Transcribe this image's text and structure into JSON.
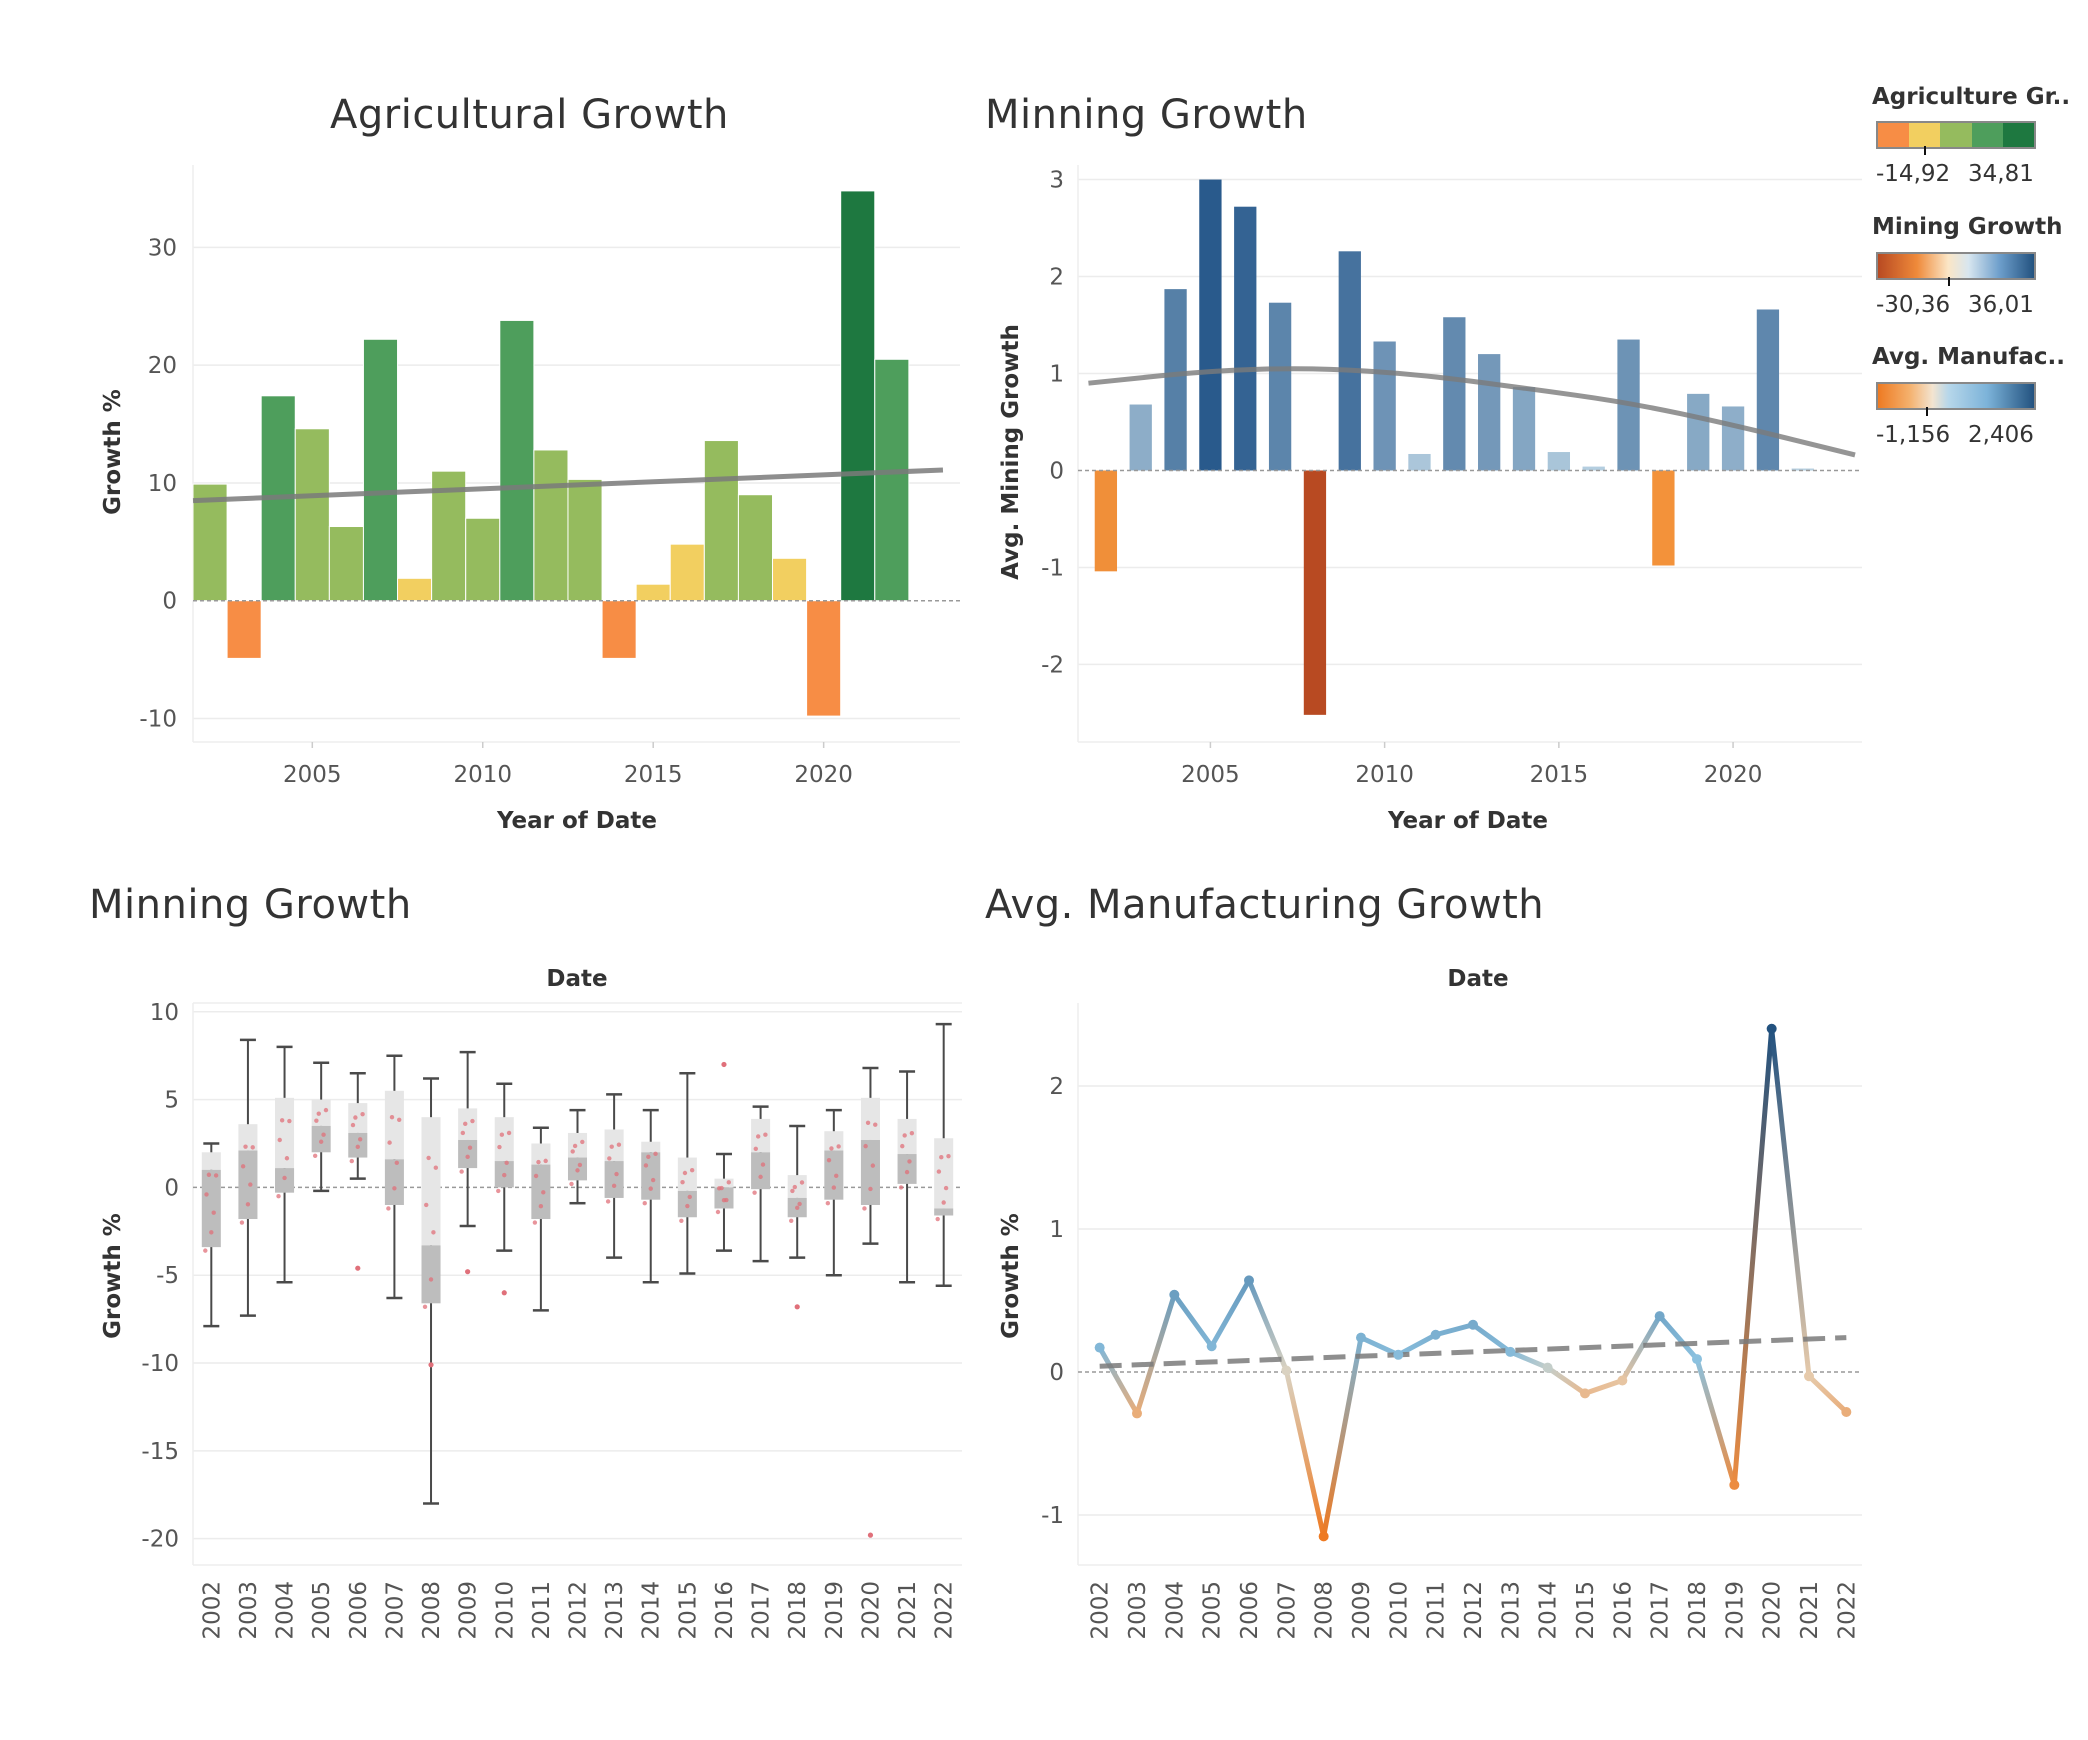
{
  "titles": {
    "tl": "Agricultural Growth",
    "tr": "Minning Growth",
    "bl": "Minning Growth",
    "br": "Avg. Manufacturing Growth"
  },
  "legends": [
    {
      "title": "Agriculture Gr..",
      "min": "-14,92",
      "max": "34,81"
    },
    {
      "title": "Mining Growth",
      "min": "-30,36",
      "max": "36,01"
    },
    {
      "title": "Avg. Manufac..",
      "min": "-1,156",
      "max": "2,406"
    }
  ],
  "colors": {
    "agri": [
      "#f78d45",
      "#f2cf60",
      "#95bb5e",
      "#4e9e5c",
      "#1e7840"
    ],
    "mining_neg": [
      "#f2913a",
      "#b84a22"
    ],
    "mining_pos_light": "#b9d2e3",
    "mining_pos_dark": "#295a8c",
    "manuf_neg": "#ee7a22",
    "manuf_mid": "#e5d4bc",
    "manuf_pos_light": "#8dc3e1",
    "manuf_pos_dark": "#23527f",
    "trend": "#7a7a7a",
    "box_outer": "#e6e6e6",
    "box_inner": "#bdbdbd",
    "whisker": "#4a4a4a",
    "points": "#e0707a"
  },
  "chart_data": [
    {
      "id": "agri",
      "type": "bar",
      "title": "Agricultural Growth",
      "xlabel": "Year of Date",
      "ylabel": "Growth %",
      "x": [
        2002,
        2003,
        2004,
        2005,
        2006,
        2007,
        2008,
        2009,
        2010,
        2011,
        2012,
        2013,
        2014,
        2015,
        2016,
        2017,
        2018,
        2019,
        2020,
        2021,
        2022
      ],
      "values": [
        9.9,
        -4.9,
        17.4,
        14.6,
        6.3,
        22.2,
        1.9,
        11.0,
        7.0,
        23.8,
        12.8,
        10.3,
        -4.9,
        1.4,
        4.8,
        13.6,
        9.0,
        3.6,
        -9.8,
        34.8,
        20.5
      ],
      "ylim": [
        -12,
        37
      ],
      "yticks": [
        -10,
        0,
        10,
        20,
        30
      ],
      "xticks": [
        2005,
        2010,
        2015,
        2020
      ],
      "trend": [
        [
          2001.5,
          8.5
        ],
        [
          2023.5,
          11.1
        ]
      ]
    },
    {
      "id": "mining",
      "type": "bar",
      "title": "Minning Growth",
      "xlabel": "Year of Date",
      "ylabel": "Avg. Mining Growth",
      "x": [
        2002,
        2003,
        2004,
        2005,
        2006,
        2007,
        2008,
        2009,
        2010,
        2011,
        2012,
        2013,
        2014,
        2015,
        2016,
        2017,
        2018,
        2019,
        2020,
        2021,
        2022
      ],
      "values": [
        -1.04,
        0.68,
        1.87,
        3.0,
        2.72,
        1.73,
        -2.52,
        2.26,
        1.33,
        0.17,
        1.58,
        1.2,
        0.86,
        0.19,
        0.04,
        1.35,
        -0.98,
        0.79,
        0.66,
        1.66,
        0.02
      ],
      "ylim": [
        -2.8,
        3.15
      ],
      "yticks": [
        -2,
        -1,
        0,
        1,
        2,
        3
      ],
      "xticks": [
        2005,
        2010,
        2015,
        2020
      ],
      "trend": [
        [
          2001.5,
          0.9
        ],
        [
          2005,
          1.03
        ],
        [
          2008,
          1.06
        ],
        [
          2011,
          0.99
        ],
        [
          2014,
          0.85
        ],
        [
          2017,
          0.7
        ],
        [
          2020,
          0.47
        ],
        [
          2023.5,
          0.16
        ]
      ]
    },
    {
      "id": "box",
      "type": "box",
      "title": "Minning Growth",
      "xlabel": "Date",
      "ylabel": "Growth %",
      "x": [
        "2002",
        "2003",
        "2004",
        "2005",
        "2006",
        "2007",
        "2008",
        "2009",
        "2010",
        "2011",
        "2012",
        "2013",
        "2014",
        "2015",
        "2016",
        "2017",
        "2018",
        "2019",
        "2020",
        "2021",
        "2022"
      ],
      "boxes": [
        {
          "lo": -7.9,
          "q1": -3.4,
          "med": 1.0,
          "q3": 2.0,
          "hi": 2.5
        },
        {
          "lo": -7.3,
          "q1": -1.8,
          "med": 2.1,
          "q3": 3.6,
          "hi": 8.4
        },
        {
          "lo": -5.4,
          "q1": -0.3,
          "med": 1.1,
          "q3": 5.1,
          "hi": 8.0
        },
        {
          "lo": -0.2,
          "q1": 2.0,
          "med": 3.5,
          "q3": 5.0,
          "hi": 7.1
        },
        {
          "lo": 0.5,
          "q1": 1.7,
          "med": 3.1,
          "q3": 4.8,
          "hi": 6.5
        },
        {
          "lo": -6.3,
          "q1": -1.0,
          "med": 1.6,
          "q3": 5.5,
          "hi": 7.5
        },
        {
          "lo": -18.0,
          "q1": -6.6,
          "med": -3.3,
          "q3": 4.0,
          "hi": 6.2
        },
        {
          "lo": -2.2,
          "q1": 1.1,
          "med": 2.7,
          "q3": 4.5,
          "hi": 7.7
        },
        {
          "lo": -3.6,
          "q1": 0.0,
          "med": 1.5,
          "q3": 4.0,
          "hi": 5.9
        },
        {
          "lo": -7.0,
          "q1": -1.8,
          "med": 1.3,
          "q3": 2.5,
          "hi": 3.4
        },
        {
          "lo": -0.9,
          "q1": 0.4,
          "med": 1.7,
          "q3": 3.1,
          "hi": 4.4
        },
        {
          "lo": -4.0,
          "q1": -0.6,
          "med": 1.5,
          "q3": 3.3,
          "hi": 5.3
        },
        {
          "lo": -5.4,
          "q1": -0.7,
          "med": 2.0,
          "q3": 2.6,
          "hi": 4.4
        },
        {
          "lo": -4.9,
          "q1": -1.7,
          "med": -0.2,
          "q3": 1.7,
          "hi": 6.5
        },
        {
          "lo": -3.6,
          "q1": -1.2,
          "med": 0.0,
          "q3": 0.5,
          "hi": 1.9
        },
        {
          "lo": -4.2,
          "q1": -0.1,
          "med": 2.0,
          "q3": 3.9,
          "hi": 4.6
        },
        {
          "lo": -4.0,
          "q1": -1.7,
          "med": -0.6,
          "q3": 0.7,
          "hi": 3.5
        },
        {
          "lo": -5.0,
          "q1": -0.7,
          "med": 2.1,
          "q3": 3.2,
          "hi": 4.4
        },
        {
          "lo": -3.2,
          "q1": -1.0,
          "med": 2.7,
          "q3": 5.1,
          "hi": 6.8
        },
        {
          "lo": -5.4,
          "q1": 0.2,
          "med": 1.9,
          "q3": 3.9,
          "hi": 6.6
        },
        {
          "lo": -5.6,
          "q1": -1.6,
          "med": -1.2,
          "q3": 2.8,
          "hi": 9.3
        }
      ],
      "outliers": [
        [
          2006,
          -4.6
        ],
        [
          2008,
          -10.1
        ],
        [
          2009,
          -4.8
        ],
        [
          2010,
          -6.0
        ],
        [
          2016,
          7.0
        ],
        [
          2018,
          -6.8
        ],
        [
          2020,
          -19.8
        ]
      ],
      "ylim": [
        -21.5,
        10.5
      ],
      "yticks": [
        -20,
        -15,
        -10,
        -5,
        0,
        5,
        10
      ]
    },
    {
      "id": "manuf",
      "type": "line",
      "title": "Avg. Manufacturing Growth",
      "xlabel": "Date",
      "ylabel": "Growth %",
      "x": [
        "2002",
        "2003",
        "2004",
        "2005",
        "2006",
        "2007",
        "2008",
        "2009",
        "2010",
        "2011",
        "2012",
        "2013",
        "2014",
        "2015",
        "2016",
        "2017",
        "2018",
        "2019",
        "2020",
        "2021",
        "2022"
      ],
      "values": [
        0.17,
        -0.29,
        0.54,
        0.18,
        0.64,
        0.01,
        -1.15,
        0.24,
        0.12,
        0.26,
        0.33,
        0.14,
        0.03,
        -0.15,
        -0.06,
        0.39,
        0.09,
        -0.79,
        2.4,
        -0.03,
        -0.28
      ],
      "ylim": [
        -1.35,
        2.58
      ],
      "yticks": [
        -1,
        0,
        1,
        2
      ],
      "trend": [
        [
          2002,
          0.04
        ],
        [
          2022,
          0.24
        ]
      ]
    }
  ]
}
